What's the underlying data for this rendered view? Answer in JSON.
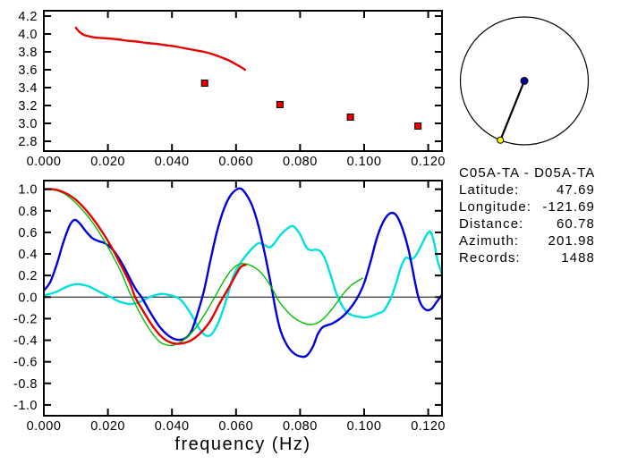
{
  "info_panel": {
    "title": "C05A-TA - D05A-TA",
    "rows": [
      {
        "label": "Latitude:",
        "value": "47.69"
      },
      {
        "label": "Longitude:",
        "value": "-121.69"
      },
      {
        "label": "Distance:",
        "value": "60.78"
      },
      {
        "label": "Azimuth:",
        "value": "201.98"
      },
      {
        "label": "Records:",
        "value": "1488"
      }
    ]
  },
  "azimuth_circle": {
    "azimuth_deg": 201.98,
    "circle_color": "#000000",
    "center_dot_color": "#000099",
    "station_dot_color": "#ffff00"
  },
  "chart_data": [
    {
      "id": "dispersion-plot",
      "type": "line",
      "xlabel": "",
      "x_range": [
        0,
        0.1243
      ],
      "y_range": [
        2.69,
        4.26
      ],
      "xticks": [
        0,
        0.02,
        0.04,
        0.06,
        0.08,
        0.1,
        0.12
      ],
      "xtick_labels": [
        "0.000",
        "0.020",
        "0.040",
        "0.060",
        "0.080",
        "0.100",
        "0.120"
      ],
      "yticks": [
        2.8,
        3.0,
        3.2,
        3.4,
        3.6,
        3.8,
        4.0,
        4.2
      ],
      "ytick_labels": [
        "2.8",
        "3.0",
        "3.2",
        "3.4",
        "3.6",
        "3.8",
        "4.0",
        "4.2"
      ],
      "grid": false,
      "zero_line": false,
      "series": [
        {
          "name": "red-dispersion-curve",
          "color": "#e60000",
          "width": 2.4,
          "points": [
            [
              0.01,
              4.07
            ],
            [
              0.0112,
              4.02
            ],
            [
              0.0125,
              3.99
            ],
            [
              0.014,
              3.975
            ],
            [
              0.016,
              3.96
            ],
            [
              0.018,
              3.955
            ],
            [
              0.02,
              3.95
            ],
            [
              0.023,
              3.94
            ],
            [
              0.026,
              3.925
            ],
            [
              0.029,
              3.915
            ],
            [
              0.032,
              3.9
            ],
            [
              0.035,
              3.89
            ],
            [
              0.038,
              3.875
            ],
            [
              0.041,
              3.86
            ],
            [
              0.044,
              3.84
            ],
            [
              0.047,
              3.82
            ],
            [
              0.05,
              3.8
            ],
            [
              0.053,
              3.77
            ],
            [
              0.056,
              3.73
            ],
            [
              0.058,
              3.7
            ],
            [
              0.06,
              3.66
            ],
            [
              0.0615,
              3.63
            ],
            [
              0.0628,
              3.6
            ]
          ]
        }
      ],
      "markers": [
        {
          "name": "red-square-markers",
          "color": "#e60000",
          "size": 7,
          "points": [
            [
              0.0502,
              3.45
            ],
            [
              0.0737,
              3.21
            ],
            [
              0.0957,
              3.07
            ],
            [
              0.1168,
              2.97
            ]
          ]
        }
      ]
    },
    {
      "id": "waveform-plot",
      "type": "line",
      "xlabel": "frequency (Hz)",
      "x_range": [
        0,
        0.1243
      ],
      "y_range": [
        -1.1,
        1.08
      ],
      "xticks": [
        0,
        0.02,
        0.04,
        0.06,
        0.08,
        0.1,
        0.12
      ],
      "xtick_labels": [
        "0.000",
        "0.020",
        "0.040",
        "0.060",
        "0.080",
        "0.100",
        "0.120"
      ],
      "yticks": [
        -1.0,
        -0.8,
        -0.6,
        -0.4,
        -0.2,
        0.0,
        0.2,
        0.4,
        0.6,
        0.8,
        1.0
      ],
      "ytick_labels": [
        "-1.0",
        "-0.8",
        "-0.6",
        "-0.4",
        "-0.2",
        "0.0",
        "0.2",
        "0.4",
        "0.6",
        "0.8",
        "1.0"
      ],
      "grid": false,
      "zero_line": true,
      "series": [
        {
          "name": "cyan-curve",
          "color": "#00e0e0",
          "width": 2.4,
          "points": [
            [
              0,
              0.015
            ],
            [
              0.002,
              0.03
            ],
            [
              0.004,
              0.05
            ],
            [
              0.006,
              0.08
            ],
            [
              0.008,
              0.105
            ],
            [
              0.01,
              0.12
            ],
            [
              0.012,
              0.115
            ],
            [
              0.014,
              0.1
            ],
            [
              0.016,
              0.07
            ],
            [
              0.018,
              0.04
            ],
            [
              0.02,
              0.01
            ],
            [
              0.021,
              0.0
            ],
            [
              0.023,
              -0.035
            ],
            [
              0.025,
              -0.055
            ],
            [
              0.027,
              -0.065
            ],
            [
              0.029,
              -0.055
            ],
            [
              0.031,
              -0.03
            ],
            [
              0.033,
              0.0
            ],
            [
              0.035,
              0.02
            ],
            [
              0.037,
              0.03
            ],
            [
              0.039,
              0.02
            ],
            [
              0.041,
              0.005
            ],
            [
              0.0425,
              -0.02
            ],
            [
              0.044,
              -0.07
            ],
            [
              0.046,
              -0.16
            ],
            [
              0.048,
              -0.27
            ],
            [
              0.05,
              -0.345
            ],
            [
              0.0515,
              -0.36
            ],
            [
              0.053,
              -0.32
            ],
            [
              0.055,
              -0.2
            ],
            [
              0.057,
              -0.02
            ],
            [
              0.059,
              0.18
            ],
            [
              0.061,
              0.3
            ],
            [
              0.063,
              0.38
            ],
            [
              0.065,
              0.45
            ],
            [
              0.067,
              0.5
            ],
            [
              0.069,
              0.48
            ],
            [
              0.0705,
              0.46
            ],
            [
              0.072,
              0.5
            ],
            [
              0.074,
              0.58
            ],
            [
              0.0765,
              0.645
            ],
            [
              0.078,
              0.655
            ],
            [
              0.08,
              0.58
            ],
            [
              0.082,
              0.46
            ],
            [
              0.0835,
              0.435
            ],
            [
              0.085,
              0.44
            ],
            [
              0.0865,
              0.42
            ],
            [
              0.088,
              0.34
            ],
            [
              0.09,
              0.16
            ],
            [
              0.0915,
              0.02
            ],
            [
              0.094,
              -0.12
            ],
            [
              0.096,
              -0.165
            ],
            [
              0.098,
              -0.18
            ],
            [
              0.1,
              -0.19
            ],
            [
              0.102,
              -0.18
            ],
            [
              0.104,
              -0.155
            ],
            [
              0.106,
              -0.13
            ],
            [
              0.1075,
              -0.06
            ],
            [
              0.1085,
              0.0
            ],
            [
              0.11,
              0.13
            ],
            [
              0.1115,
              0.28
            ],
            [
              0.113,
              0.365
            ],
            [
              0.1145,
              0.35
            ],
            [
              0.116,
              0.38
            ],
            [
              0.118,
              0.49
            ],
            [
              0.12,
              0.6
            ],
            [
              0.121,
              0.59
            ],
            [
              0.122,
              0.48
            ],
            [
              0.123,
              0.33
            ],
            [
              0.1243,
              0.215
            ]
          ]
        },
        {
          "name": "blue-curve",
          "color": "#0000dd",
          "width": 2.4,
          "points": [
            [
              0,
              0.06
            ],
            [
              0.002,
              0.14
            ],
            [
              0.004,
              0.3
            ],
            [
              0.006,
              0.5
            ],
            [
              0.008,
              0.66
            ],
            [
              0.0095,
              0.715
            ],
            [
              0.011,
              0.69
            ],
            [
              0.013,
              0.615
            ],
            [
              0.015,
              0.55
            ],
            [
              0.017,
              0.52
            ],
            [
              0.019,
              0.5
            ],
            [
              0.021,
              0.455
            ],
            [
              0.023,
              0.38
            ],
            [
              0.025,
              0.28
            ],
            [
              0.027,
              0.165
            ],
            [
              0.029,
              0.06
            ],
            [
              0.0305,
              0.0
            ],
            [
              0.033,
              -0.13
            ],
            [
              0.036,
              -0.27
            ],
            [
              0.039,
              -0.36
            ],
            [
              0.0415,
              -0.395
            ],
            [
              0.044,
              -0.385
            ],
            [
              0.046,
              -0.32
            ],
            [
              0.048,
              -0.15
            ],
            [
              0.05,
              0.06
            ],
            [
              0.052,
              0.34
            ],
            [
              0.054,
              0.6
            ],
            [
              0.056,
              0.8
            ],
            [
              0.058,
              0.93
            ],
            [
              0.06,
              0.995
            ],
            [
              0.0615,
              1.005
            ],
            [
              0.063,
              0.96
            ],
            [
              0.065,
              0.85
            ],
            [
              0.067,
              0.66
            ],
            [
              0.069,
              0.4
            ],
            [
              0.071,
              0.1
            ],
            [
              0.0725,
              -0.14
            ],
            [
              0.074,
              -0.32
            ],
            [
              0.076,
              -0.45
            ],
            [
              0.078,
              -0.52
            ],
            [
              0.08,
              -0.55
            ],
            [
              0.082,
              -0.545
            ],
            [
              0.084,
              -0.46
            ],
            [
              0.0855,
              -0.345
            ],
            [
              0.087,
              -0.28
            ],
            [
              0.0885,
              -0.26
            ],
            [
              0.09,
              -0.245
            ],
            [
              0.092,
              -0.21
            ],
            [
              0.094,
              -0.16
            ],
            [
              0.096,
              -0.09
            ],
            [
              0.098,
              0.0
            ],
            [
              0.1,
              0.13
            ],
            [
              0.102,
              0.33
            ],
            [
              0.104,
              0.55
            ],
            [
              0.106,
              0.7
            ],
            [
              0.108,
              0.775
            ],
            [
              0.11,
              0.76
            ],
            [
              0.112,
              0.63
            ],
            [
              0.114,
              0.42
            ],
            [
              0.116,
              0.12
            ],
            [
              0.117,
              -0.01
            ],
            [
              0.118,
              -0.08
            ],
            [
              0.1195,
              -0.12
            ],
            [
              0.121,
              -0.11
            ],
            [
              0.1225,
              -0.05
            ],
            [
              0.1243,
              0.02
            ]
          ]
        },
        {
          "name": "green-curve",
          "color": "#00c000",
          "width": 1.4,
          "points": [
            [
              0,
              1.0
            ],
            [
              0.003,
              0.995
            ],
            [
              0.006,
              0.965
            ],
            [
              0.009,
              0.9
            ],
            [
              0.012,
              0.81
            ],
            [
              0.015,
              0.7
            ],
            [
              0.018,
              0.565
            ],
            [
              0.021,
              0.41
            ],
            [
              0.024,
              0.24
            ],
            [
              0.0265,
              0.06
            ],
            [
              0.0275,
              0.0
            ],
            [
              0.03,
              -0.15
            ],
            [
              0.033,
              -0.3
            ],
            [
              0.036,
              -0.41
            ],
            [
              0.0385,
              -0.445
            ],
            [
              0.041,
              -0.44
            ],
            [
              0.044,
              -0.39
            ],
            [
              0.047,
              -0.3
            ],
            [
              0.05,
              -0.17
            ],
            [
              0.053,
              -0.02
            ],
            [
              0.056,
              0.14
            ],
            [
              0.058,
              0.23
            ],
            [
              0.06,
              0.29
            ],
            [
              0.062,
              0.31
            ],
            [
              0.064,
              0.3
            ],
            [
              0.066,
              0.27
            ],
            [
              0.068,
              0.22
            ],
            [
              0.07,
              0.14
            ],
            [
              0.072,
              0.04
            ],
            [
              0.073,
              -0.02
            ],
            [
              0.075,
              -0.1
            ],
            [
              0.078,
              -0.19
            ],
            [
              0.081,
              -0.24
            ],
            [
              0.0835,
              -0.255
            ],
            [
              0.086,
              -0.23
            ],
            [
              0.088,
              -0.18
            ],
            [
              0.09,
              -0.11
            ],
            [
              0.0925,
              -0.01
            ],
            [
              0.094,
              0.05
            ],
            [
              0.096,
              0.11
            ],
            [
              0.098,
              0.15
            ],
            [
              0.0995,
              0.175
            ]
          ]
        },
        {
          "name": "red-curve",
          "color": "#e60000",
          "width": 2.4,
          "points": [
            [
              0,
              1.0
            ],
            [
              0.003,
              1.0
            ],
            [
              0.006,
              0.975
            ],
            [
              0.009,
              0.925
            ],
            [
              0.012,
              0.845
            ],
            [
              0.015,
              0.74
            ],
            [
              0.018,
              0.615
            ],
            [
              0.021,
              0.47
            ],
            [
              0.024,
              0.3
            ],
            [
              0.027,
              0.12
            ],
            [
              0.0285,
              0.0
            ],
            [
              0.031,
              -0.13
            ],
            [
              0.034,
              -0.27
            ],
            [
              0.037,
              -0.375
            ],
            [
              0.04,
              -0.425
            ],
            [
              0.043,
              -0.43
            ],
            [
              0.046,
              -0.4
            ],
            [
              0.049,
              -0.33
            ],
            [
              0.052,
              -0.22
            ],
            [
              0.0545,
              -0.08
            ],
            [
              0.056,
              0.0
            ],
            [
              0.058,
              0.1
            ],
            [
              0.06,
              0.21
            ],
            [
              0.0615,
              0.28
            ],
            [
              0.063,
              0.3
            ]
          ]
        }
      ],
      "markers": []
    }
  ]
}
